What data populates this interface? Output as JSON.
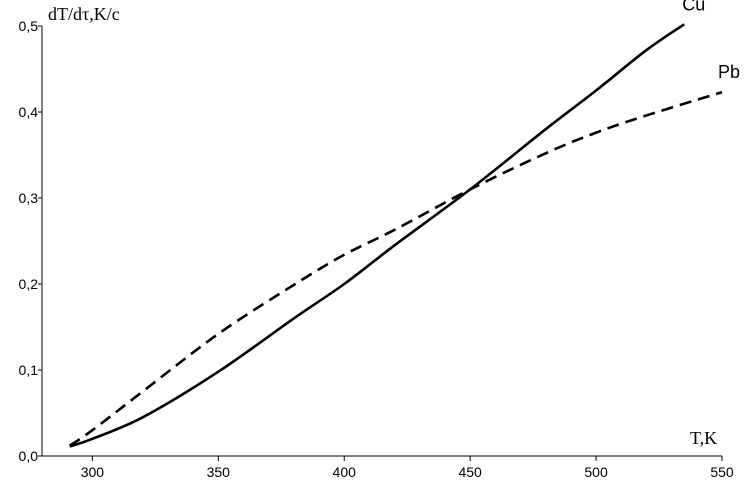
{
  "chart_data": {
    "type": "line",
    "title": "",
    "xlabel": "T,K",
    "ylabel": "dT/dτ,K/c",
    "xlim": [
      280,
      550
    ],
    "ylim": [
      0,
      0.5
    ],
    "x_ticks": [
      300,
      350,
      400,
      450,
      500,
      550
    ],
    "x_tick_labels": [
      "300",
      "350",
      "400",
      "450",
      "500",
      "550"
    ],
    "y_ticks": [
      0,
      0.1,
      0.2,
      0.3,
      0.4,
      0.5
    ],
    "y_tick_labels": [
      "0,0",
      "0,1",
      "0,2",
      "0,3",
      "0,4",
      "0,5"
    ],
    "grid": false,
    "series": [
      {
        "name": "Cu",
        "style": "solid",
        "color": "#000000",
        "x": [
          291,
          300,
          320,
          350,
          380,
          400,
          420,
          450,
          480,
          500,
          520,
          535
        ],
        "y": [
          0.011,
          0.02,
          0.045,
          0.098,
          0.16,
          0.2,
          0.245,
          0.31,
          0.38,
          0.425,
          0.472,
          0.502
        ]
      },
      {
        "name": "Pb",
        "style": "dashed",
        "color": "#000000",
        "x": [
          291,
          300,
          320,
          350,
          380,
          400,
          420,
          450,
          480,
          500,
          520,
          550
        ],
        "y": [
          0.012,
          0.03,
          0.075,
          0.142,
          0.199,
          0.234,
          0.263,
          0.31,
          0.352,
          0.376,
          0.396,
          0.423
        ]
      }
    ]
  }
}
